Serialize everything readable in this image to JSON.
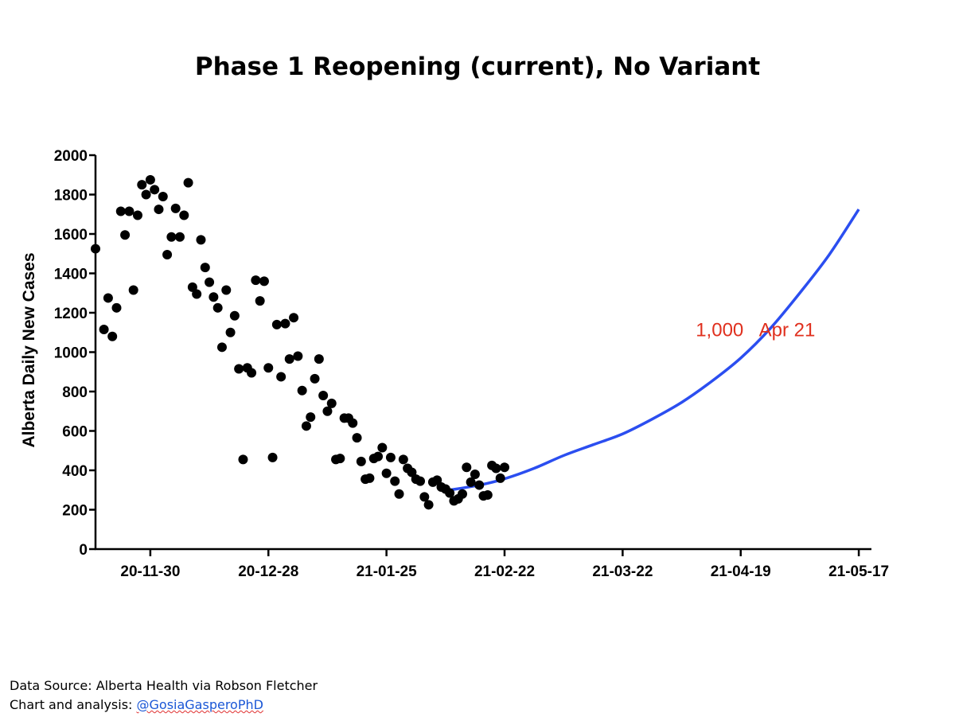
{
  "chart_data": {
    "type": "scatter",
    "title": "Phase 1 Reopening (current), No Variant",
    "ylabel": "Alberta Daily New Cases",
    "xlabel": "",
    "ylim": [
      0,
      2000
    ],
    "yticks": [
      0,
      200,
      400,
      600,
      800,
      1000,
      1200,
      1400,
      1600,
      1800,
      2000
    ],
    "xlim": [
      "2020-11-17",
      "2021-05-20"
    ],
    "xticks": [
      {
        "date": "2020-11-30",
        "label": "20-11-30"
      },
      {
        "date": "2020-12-28",
        "label": "20-12-28"
      },
      {
        "date": "2021-01-25",
        "label": "21-01-25"
      },
      {
        "date": "2021-02-22",
        "label": "21-02-22"
      },
      {
        "date": "2021-03-22",
        "label": "21-03-22"
      },
      {
        "date": "2021-04-19",
        "label": "21-04-19"
      },
      {
        "date": "2021-05-17",
        "label": "21-05-17"
      }
    ],
    "grid": false,
    "series": [
      {
        "kind": "points",
        "color": "#000000",
        "points": [
          [
            "2020-11-17",
            1525
          ],
          [
            "2020-11-19",
            1115
          ],
          [
            "2020-11-20",
            1275
          ],
          [
            "2020-11-21",
            1080
          ],
          [
            "2020-11-22",
            1225
          ],
          [
            "2020-11-23",
            1715
          ],
          [
            "2020-11-24",
            1595
          ],
          [
            "2020-11-25",
            1715
          ],
          [
            "2020-11-26",
            1315
          ],
          [
            "2020-11-27",
            1695
          ],
          [
            "2020-11-28",
            1850
          ],
          [
            "2020-11-29",
            1800
          ],
          [
            "2020-11-30",
            1875
          ],
          [
            "2020-12-01",
            1825
          ],
          [
            "2020-12-02",
            1725
          ],
          [
            "2020-12-03",
            1790
          ],
          [
            "2020-12-04",
            1495
          ],
          [
            "2020-12-05",
            1585
          ],
          [
            "2020-12-06",
            1730
          ],
          [
            "2020-12-07",
            1585
          ],
          [
            "2020-12-08",
            1695
          ],
          [
            "2020-12-09",
            1860
          ],
          [
            "2020-12-10",
            1330
          ],
          [
            "2020-12-11",
            1295
          ],
          [
            "2020-12-12",
            1570
          ],
          [
            "2020-12-13",
            1430
          ],
          [
            "2020-12-14",
            1355
          ],
          [
            "2020-12-15",
            1280
          ],
          [
            "2020-12-16",
            1225
          ],
          [
            "2020-12-17",
            1025
          ],
          [
            "2020-12-18",
            1315
          ],
          [
            "2020-12-19",
            1100
          ],
          [
            "2020-12-20",
            1185
          ],
          [
            "2020-12-21",
            915
          ],
          [
            "2020-12-22",
            455
          ],
          [
            "2020-12-23",
            920
          ],
          [
            "2020-12-24",
            895
          ],
          [
            "2020-12-25",
            1365
          ],
          [
            "2020-12-26",
            1260
          ],
          [
            "2020-12-27",
            1360
          ],
          [
            "2020-12-28",
            920
          ],
          [
            "2020-12-29",
            465
          ],
          [
            "2020-12-30",
            1140
          ],
          [
            "2020-12-31",
            875
          ],
          [
            "2021-01-01",
            1145
          ],
          [
            "2021-01-02",
            965
          ],
          [
            "2021-01-03",
            1175
          ],
          [
            "2021-01-04",
            980
          ],
          [
            "2021-01-05",
            805
          ],
          [
            "2021-01-06",
            625
          ],
          [
            "2021-01-07",
            670
          ],
          [
            "2021-01-08",
            865
          ],
          [
            "2021-01-09",
            965
          ],
          [
            "2021-01-10",
            780
          ],
          [
            "2021-01-11",
            700
          ],
          [
            "2021-01-12",
            740
          ],
          [
            "2021-01-13",
            455
          ],
          [
            "2021-01-14",
            460
          ],
          [
            "2021-01-15",
            665
          ],
          [
            "2021-01-16",
            665
          ],
          [
            "2021-01-17",
            640
          ],
          [
            "2021-01-18",
            565
          ],
          [
            "2021-01-19",
            445
          ],
          [
            "2021-01-20",
            355
          ],
          [
            "2021-01-21",
            360
          ],
          [
            "2021-01-22",
            460
          ],
          [
            "2021-01-23",
            470
          ],
          [
            "2021-01-24",
            515
          ],
          [
            "2021-01-25",
            385
          ],
          [
            "2021-01-26",
            465
          ],
          [
            "2021-01-27",
            345
          ],
          [
            "2021-01-28",
            280
          ],
          [
            "2021-01-29",
            455
          ],
          [
            "2021-01-30",
            410
          ],
          [
            "2021-01-31",
            390
          ],
          [
            "2021-02-01",
            355
          ],
          [
            "2021-02-02",
            345
          ],
          [
            "2021-02-03",
            265
          ],
          [
            "2021-02-04",
            225
          ],
          [
            "2021-02-05",
            340
          ],
          [
            "2021-02-06",
            350
          ],
          [
            "2021-02-07",
            315
          ],
          [
            "2021-02-08",
            305
          ],
          [
            "2021-02-09",
            285
          ],
          [
            "2021-02-10",
            245
          ],
          [
            "2021-02-11",
            255
          ],
          [
            "2021-02-12",
            280
          ],
          [
            "2021-02-13",
            415
          ],
          [
            "2021-02-14",
            340
          ],
          [
            "2021-02-15",
            380
          ],
          [
            "2021-02-16",
            325
          ],
          [
            "2021-02-17",
            270
          ],
          [
            "2021-02-18",
            275
          ],
          [
            "2021-02-19",
            425
          ],
          [
            "2021-02-20",
            410
          ],
          [
            "2021-02-21",
            360
          ],
          [
            "2021-02-22",
            415
          ]
        ]
      },
      {
        "kind": "curve",
        "color": "#2b4ef0",
        "points": [
          [
            "2021-02-09",
            300
          ],
          [
            "2021-02-16",
            325
          ],
          [
            "2021-02-22",
            357
          ],
          [
            "2021-03-01",
            410
          ],
          [
            "2021-03-08",
            475
          ],
          [
            "2021-03-15",
            530
          ],
          [
            "2021-03-22",
            585
          ],
          [
            "2021-03-29",
            660
          ],
          [
            "2021-04-05",
            745
          ],
          [
            "2021-04-12",
            850
          ],
          [
            "2021-04-19",
            970
          ],
          [
            "2021-04-26",
            1120
          ],
          [
            "2021-05-03",
            1300
          ],
          [
            "2021-05-10",
            1495
          ],
          [
            "2021-05-17",
            1725
          ]
        ]
      }
    ],
    "annotations": [
      {
        "text": "1,000",
        "x": "2021-04-14",
        "y": 1080,
        "color": "#e0301e"
      },
      {
        "text": "Apr 21",
        "x": "2021-04-30",
        "y": 1080,
        "color": "#e0301e"
      }
    ]
  },
  "footer": {
    "source": "Data Source: Alberta Health via Robson Fletcher",
    "credit_prefix": "Chart and analysis: ",
    "credit_handle": "@GosiaGasperoPhD"
  }
}
